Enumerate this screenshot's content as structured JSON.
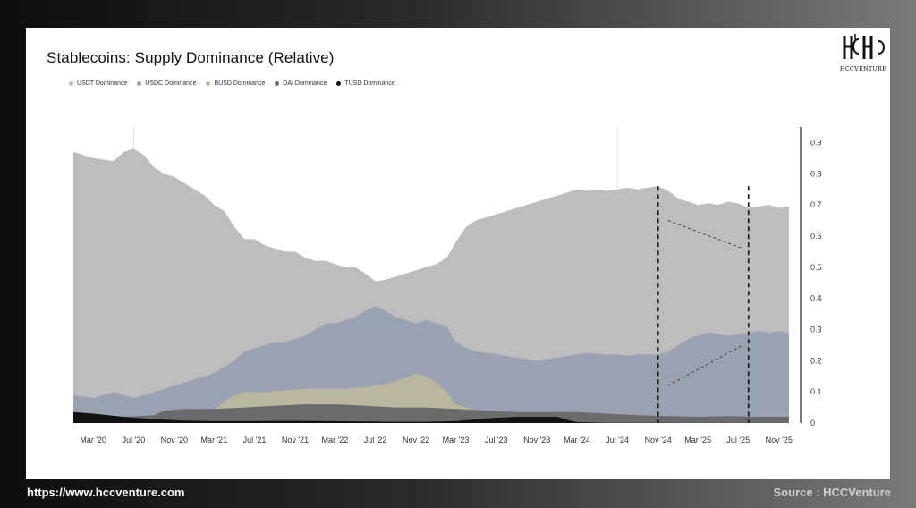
{
  "logo": {
    "text": "HCCVENTURE"
  },
  "footer": {
    "url": "https://www.hccventure.com",
    "source": "Source : HCCVenture"
  },
  "chart_data": {
    "type": "area",
    "title": "Stablecoins: Supply Dominance (Relative)",
    "stacking": "overlapping",
    "ylim": [
      0,
      0.95
    ],
    "yticks": [
      "0.9",
      "0.8",
      "0.7",
      "0.6",
      "0.5",
      "0.4",
      "0.3",
      "0.2",
      "0.1",
      "0"
    ],
    "ytick_values": [
      0.9,
      0.8,
      0.7,
      0.6,
      0.5,
      0.4,
      0.3,
      0.2,
      0.1,
      0
    ],
    "xlim": [
      "2020-01-01",
      "2025-12-31"
    ],
    "xticks": [
      "Mar '20",
      "Jul '20",
      "Nov '20",
      "Mar '21",
      "Jul '21",
      "Nov '21",
      "Mar '22",
      "Jul '22",
      "Nov '22",
      "Mar '23",
      "Jul '23",
      "Nov '23",
      "Mar '24",
      "Jul '24",
      "Nov '24",
      "Mar '25",
      "Jul '25",
      "Nov '25"
    ],
    "xtick_dates": [
      "2020-03-01",
      "2020-07-01",
      "2020-11-01",
      "2021-03-01",
      "2021-07-01",
      "2021-11-01",
      "2022-03-01",
      "2022-07-01",
      "2022-11-01",
      "2023-03-01",
      "2023-07-01",
      "2023-11-01",
      "2024-03-01",
      "2024-07-01",
      "2024-11-01",
      "2025-03-01",
      "2025-07-01",
      "2025-11-01"
    ],
    "legend_position": "top-left",
    "grid": false,
    "series": [
      {
        "name": "USDT Dominance",
        "color": "#bdbdbd",
        "points": [
          [
            "2020-01-01",
            0.87
          ],
          [
            "2020-03-01",
            0.85
          ],
          [
            "2020-05-01",
            0.84
          ],
          [
            "2020-06-01",
            0.87
          ],
          [
            "2020-07-01",
            0.88
          ],
          [
            "2020-08-01",
            0.86
          ],
          [
            "2020-09-01",
            0.82
          ],
          [
            "2020-10-01",
            0.8
          ],
          [
            "2020-11-01",
            0.79
          ],
          [
            "2020-12-01",
            0.77
          ],
          [
            "2021-01-01",
            0.75
          ],
          [
            "2021-02-01",
            0.73
          ],
          [
            "2021-03-01",
            0.7
          ],
          [
            "2021-04-01",
            0.68
          ],
          [
            "2021-05-01",
            0.63
          ],
          [
            "2021-06-01",
            0.59
          ],
          [
            "2021-07-01",
            0.59
          ],
          [
            "2021-08-01",
            0.57
          ],
          [
            "2021-09-01",
            0.56
          ],
          [
            "2021-10-01",
            0.55
          ],
          [
            "2021-11-01",
            0.55
          ],
          [
            "2021-12-01",
            0.53
          ],
          [
            "2022-01-01",
            0.52
          ],
          [
            "2022-02-01",
            0.52
          ],
          [
            "2022-03-01",
            0.51
          ],
          [
            "2022-04-01",
            0.5
          ],
          [
            "2022-05-01",
            0.5
          ],
          [
            "2022-06-01",
            0.48
          ],
          [
            "2022-07-01",
            0.455
          ],
          [
            "2022-08-01",
            0.46
          ],
          [
            "2022-09-01",
            0.47
          ],
          [
            "2022-10-01",
            0.48
          ],
          [
            "2022-11-01",
            0.49
          ],
          [
            "2022-12-01",
            0.5
          ],
          [
            "2023-01-01",
            0.51
          ],
          [
            "2023-02-01",
            0.53
          ],
          [
            "2023-03-01",
            0.58
          ],
          [
            "2023-04-01",
            0.63
          ],
          [
            "2023-05-01",
            0.65
          ],
          [
            "2023-06-01",
            0.66
          ],
          [
            "2023-07-01",
            0.67
          ],
          [
            "2023-08-01",
            0.68
          ],
          [
            "2023-09-01",
            0.69
          ],
          [
            "2023-10-01",
            0.7
          ],
          [
            "2023-11-01",
            0.71
          ],
          [
            "2023-12-01",
            0.72
          ],
          [
            "2024-01-01",
            0.73
          ],
          [
            "2024-02-01",
            0.74
          ],
          [
            "2024-03-01",
            0.75
          ],
          [
            "2024-04-01",
            0.745
          ],
          [
            "2024-05-01",
            0.75
          ],
          [
            "2024-06-01",
            0.745
          ],
          [
            "2024-07-01",
            0.75
          ],
          [
            "2024-08-01",
            0.755
          ],
          [
            "2024-09-01",
            0.75
          ],
          [
            "2024-10-01",
            0.755
          ],
          [
            "2024-11-01",
            0.76
          ],
          [
            "2024-12-01",
            0.745
          ],
          [
            "2025-01-01",
            0.72
          ],
          [
            "2025-02-01",
            0.71
          ],
          [
            "2025-03-01",
            0.7
          ],
          [
            "2025-04-01",
            0.705
          ],
          [
            "2025-05-01",
            0.7
          ],
          [
            "2025-06-01",
            0.71
          ],
          [
            "2025-07-01",
            0.705
          ],
          [
            "2025-08-01",
            0.69
          ],
          [
            "2025-09-01",
            0.695
          ],
          [
            "2025-10-01",
            0.7
          ],
          [
            "2025-11-01",
            0.69
          ],
          [
            "2025-12-01",
            0.695
          ]
        ]
      },
      {
        "name": "USDC Dominance",
        "color": "#9aa2b1",
        "points": [
          [
            "2020-01-01",
            0.09
          ],
          [
            "2020-03-01",
            0.08
          ],
          [
            "2020-04-01",
            0.09
          ],
          [
            "2020-05-01",
            0.1
          ],
          [
            "2020-06-01",
            0.09
          ],
          [
            "2020-07-01",
            0.08
          ],
          [
            "2020-08-01",
            0.09
          ],
          [
            "2020-09-01",
            0.1
          ],
          [
            "2020-10-01",
            0.11
          ],
          [
            "2020-11-01",
            0.12
          ],
          [
            "2020-12-01",
            0.13
          ],
          [
            "2021-01-01",
            0.14
          ],
          [
            "2021-02-01",
            0.15
          ],
          [
            "2021-03-01",
            0.16
          ],
          [
            "2021-04-01",
            0.18
          ],
          [
            "2021-05-01",
            0.2
          ],
          [
            "2021-06-01",
            0.23
          ],
          [
            "2021-07-01",
            0.24
          ],
          [
            "2021-08-01",
            0.25
          ],
          [
            "2021-09-01",
            0.26
          ],
          [
            "2021-10-01",
            0.26
          ],
          [
            "2021-11-01",
            0.27
          ],
          [
            "2021-12-01",
            0.28
          ],
          [
            "2022-01-01",
            0.3
          ],
          [
            "2022-02-01",
            0.32
          ],
          [
            "2022-03-01",
            0.32
          ],
          [
            "2022-04-01",
            0.33
          ],
          [
            "2022-05-01",
            0.34
          ],
          [
            "2022-06-01",
            0.36
          ],
          [
            "2022-07-01",
            0.375
          ],
          [
            "2022-08-01",
            0.36
          ],
          [
            "2022-09-01",
            0.34
          ],
          [
            "2022-10-01",
            0.33
          ],
          [
            "2022-11-01",
            0.32
          ],
          [
            "2022-12-01",
            0.33
          ],
          [
            "2023-01-01",
            0.32
          ],
          [
            "2023-02-01",
            0.31
          ],
          [
            "2023-03-01",
            0.26
          ],
          [
            "2023-04-01",
            0.24
          ],
          [
            "2023-05-01",
            0.23
          ],
          [
            "2023-06-01",
            0.225
          ],
          [
            "2023-07-01",
            0.22
          ],
          [
            "2023-08-01",
            0.215
          ],
          [
            "2023-09-01",
            0.21
          ],
          [
            "2023-10-01",
            0.205
          ],
          [
            "2023-11-01",
            0.2
          ],
          [
            "2023-12-01",
            0.205
          ],
          [
            "2024-01-01",
            0.21
          ],
          [
            "2024-02-01",
            0.215
          ],
          [
            "2024-03-01",
            0.22
          ],
          [
            "2024-04-01",
            0.225
          ],
          [
            "2024-05-01",
            0.22
          ],
          [
            "2024-06-01",
            0.22
          ],
          [
            "2024-07-01",
            0.22
          ],
          [
            "2024-08-01",
            0.215
          ],
          [
            "2024-09-01",
            0.22
          ],
          [
            "2024-10-01",
            0.22
          ],
          [
            "2024-11-01",
            0.22
          ],
          [
            "2024-12-01",
            0.23
          ],
          [
            "2025-01-01",
            0.25
          ],
          [
            "2025-02-01",
            0.27
          ],
          [
            "2025-03-01",
            0.28
          ],
          [
            "2025-04-01",
            0.29
          ],
          [
            "2025-05-01",
            0.285
          ],
          [
            "2025-06-01",
            0.28
          ],
          [
            "2025-07-01",
            0.285
          ],
          [
            "2025-08-01",
            0.29
          ],
          [
            "2025-09-01",
            0.295
          ],
          [
            "2025-10-01",
            0.29
          ],
          [
            "2025-11-01",
            0.295
          ],
          [
            "2025-12-01",
            0.29
          ]
        ]
      },
      {
        "name": "BUSD Dominance",
        "color": "#b9b7a0",
        "points": [
          [
            "2020-01-01",
            0.0
          ],
          [
            "2020-09-01",
            0.0
          ],
          [
            "2020-10-01",
            0.01
          ],
          [
            "2021-01-01",
            0.02
          ],
          [
            "2021-03-01",
            0.04
          ],
          [
            "2021-04-01",
            0.07
          ],
          [
            "2021-05-01",
            0.09
          ],
          [
            "2021-06-01",
            0.1
          ],
          [
            "2021-08-01",
            0.1
          ],
          [
            "2021-10-01",
            0.105
          ],
          [
            "2021-12-01",
            0.11
          ],
          [
            "2022-02-01",
            0.11
          ],
          [
            "2022-04-01",
            0.11
          ],
          [
            "2022-06-01",
            0.115
          ],
          [
            "2022-08-01",
            0.125
          ],
          [
            "2022-10-01",
            0.145
          ],
          [
            "2022-11-01",
            0.16
          ],
          [
            "2022-12-01",
            0.15
          ],
          [
            "2023-01-01",
            0.13
          ],
          [
            "2023-02-01",
            0.1
          ],
          [
            "2023-03-01",
            0.06
          ],
          [
            "2023-04-01",
            0.05
          ],
          [
            "2023-05-01",
            0.035
          ],
          [
            "2023-06-01",
            0.02
          ],
          [
            "2023-07-01",
            0.01
          ],
          [
            "2023-09-01",
            0.0
          ],
          [
            "2025-12-01",
            0.0
          ]
        ]
      },
      {
        "name": "DAI Dominance",
        "color": "#6b6b6b",
        "points": [
          [
            "2020-01-01",
            0.025
          ],
          [
            "2020-03-01",
            0.02
          ],
          [
            "2020-06-01",
            0.02
          ],
          [
            "2020-09-01",
            0.025
          ],
          [
            "2020-10-01",
            0.04
          ],
          [
            "2020-12-01",
            0.045
          ],
          [
            "2021-03-01",
            0.045
          ],
          [
            "2021-06-01",
            0.05
          ],
          [
            "2021-09-01",
            0.055
          ],
          [
            "2021-12-01",
            0.06
          ],
          [
            "2022-03-01",
            0.06
          ],
          [
            "2022-06-01",
            0.055
          ],
          [
            "2022-09-01",
            0.05
          ],
          [
            "2022-12-01",
            0.05
          ],
          [
            "2023-03-01",
            0.045
          ],
          [
            "2023-06-01",
            0.04
          ],
          [
            "2023-09-01",
            0.035
          ],
          [
            "2023-12-01",
            0.035
          ],
          [
            "2024-03-01",
            0.035
          ],
          [
            "2024-06-01",
            0.03
          ],
          [
            "2024-09-01",
            0.025
          ],
          [
            "2024-12-01",
            0.022
          ],
          [
            "2025-03-01",
            0.02
          ],
          [
            "2025-06-01",
            0.022
          ],
          [
            "2025-09-01",
            0.02
          ],
          [
            "2025-12-01",
            0.02
          ]
        ]
      },
      {
        "name": "TUSD Dominance",
        "color": "#111111",
        "points": [
          [
            "2020-01-01",
            0.035
          ],
          [
            "2020-03-01",
            0.03
          ],
          [
            "2020-06-01",
            0.02
          ],
          [
            "2020-09-01",
            0.012
          ],
          [
            "2020-12-01",
            0.008
          ],
          [
            "2021-03-01",
            0.006
          ],
          [
            "2021-06-01",
            0.006
          ],
          [
            "2021-09-01",
            0.007
          ],
          [
            "2021-12-01",
            0.007
          ],
          [
            "2022-03-01",
            0.006
          ],
          [
            "2022-06-01",
            0.005
          ],
          [
            "2022-09-01",
            0.004
          ],
          [
            "2022-12-01",
            0.004
          ],
          [
            "2023-03-01",
            0.006
          ],
          [
            "2023-06-01",
            0.015
          ],
          [
            "2023-09-01",
            0.02
          ],
          [
            "2023-12-01",
            0.02
          ],
          [
            "2024-01-01",
            0.02
          ],
          [
            "2024-02-01",
            0.01
          ],
          [
            "2024-03-01",
            0.003
          ],
          [
            "2024-06-01",
            0.001
          ],
          [
            "2025-12-01",
            0.0
          ]
        ]
      }
    ],
    "annotations": [
      {
        "type": "vline",
        "style": "dashed",
        "x": "2024-11-01"
      },
      {
        "type": "vline",
        "style": "dashed",
        "x": "2025-08-01"
      },
      {
        "type": "arrow",
        "style": "dashed",
        "from": [
          "2024-12-01",
          0.65
        ],
        "to": [
          "2025-07-15",
          0.56
        ]
      },
      {
        "type": "arrow",
        "style": "dashed",
        "from": [
          "2024-12-01",
          0.12
        ],
        "to": [
          "2025-07-15",
          0.25
        ]
      }
    ]
  }
}
